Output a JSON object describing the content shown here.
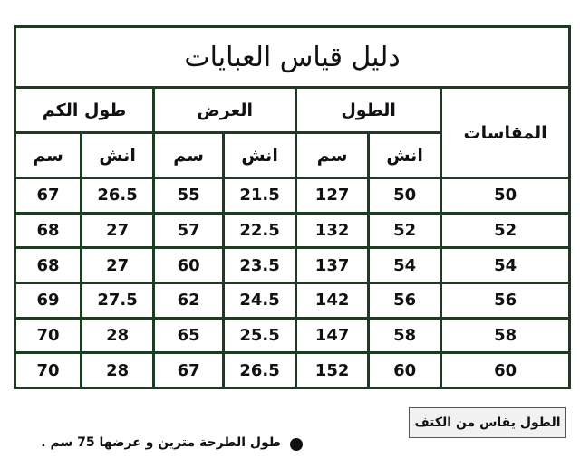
{
  "title": "دليل قياس العبايات",
  "table": {
    "size_header": "المقاسات",
    "groups": [
      {
        "label": "الطول",
        "units": [
          "انش",
          "سم"
        ]
      },
      {
        "label": "العرض",
        "units": [
          "انش",
          "سم"
        ]
      },
      {
        "label": "طول الكم",
        "units": [
          "انش",
          "سم"
        ]
      }
    ],
    "rows": [
      [
        50,
        50,
        127,
        21.5,
        55,
        26.5,
        67
      ],
      [
        52,
        52,
        132,
        22.5,
        57,
        27,
        68
      ],
      [
        54,
        54,
        137,
        23.5,
        60,
        27,
        68
      ],
      [
        56,
        56,
        142,
        24.5,
        62,
        27.5,
        69
      ],
      [
        58,
        58,
        147,
        25.5,
        65,
        28,
        70
      ],
      [
        60,
        60,
        152,
        26.5,
        67,
        28,
        70
      ]
    ]
  },
  "notes": {
    "measure": "الطول يقاس من الكتف",
    "scarf": "طول الطرحة مترين و عرضها 75 سم ."
  }
}
